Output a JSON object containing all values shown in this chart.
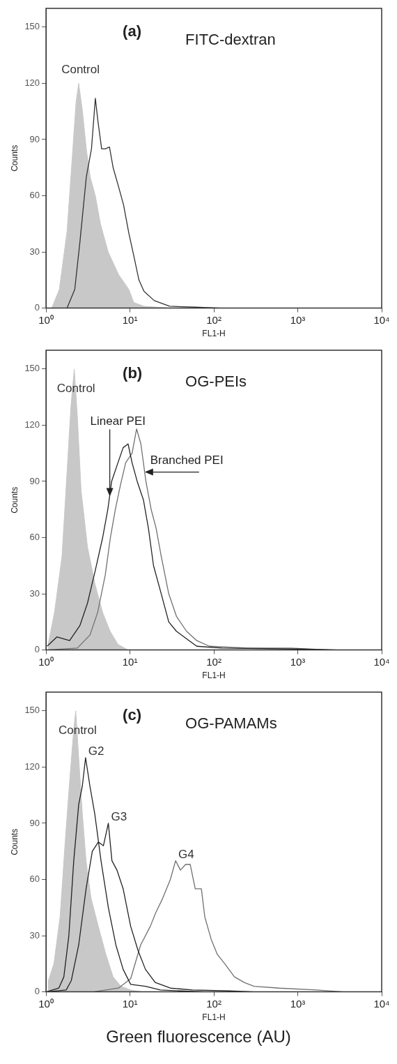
{
  "chart_data": [
    {
      "type": "line",
      "title": "(a)",
      "subtitle": "FITC-dextran",
      "xlabel": "FL1-H",
      "ylabel": "Counts",
      "log": "x",
      "xlim": [
        1,
        10000
      ],
      "xticks": [
        {
          "value": 1,
          "label": "10⁰"
        },
        {
          "value": 10,
          "label": "10¹"
        },
        {
          "value": 100,
          "label": "10²"
        },
        {
          "value": 1000,
          "label": "10³"
        },
        {
          "value": 10000,
          "label": "10⁴"
        }
      ],
      "ylim": [
        0,
        160
      ],
      "yticks": [
        0,
        30,
        60,
        90,
        120,
        150
      ],
      "grid": false,
      "legend": false,
      "series": [
        {
          "name": "Control",
          "type": "area",
          "color": "#c8c8c8",
          "x": [
            1.17,
            1.44,
            1.78,
            2.05,
            2.28,
            2.45,
            2.72,
            3.02,
            3.36,
            3.87,
            4.45,
            5.5,
            7.3,
            9.7,
            11.1,
            14.7,
            29.7
          ],
          "values": [
            0,
            10,
            41,
            80,
            110,
            120,
            105,
            85,
            70,
            60,
            45,
            30,
            18,
            10,
            3,
            1,
            0
          ]
        },
        {
          "type": "line",
          "color": "#333333",
          "x": [
            1.78,
            2.2,
            2.53,
            3.02,
            3.48,
            3.87,
            4.15,
            4.6,
            5.1,
            5.7,
            6.3,
            7.3,
            8.4,
            9.7,
            11.1,
            12.8,
            14.7,
            19.5,
            29.7,
            60,
            121
          ],
          "values": [
            0,
            10,
            35,
            70,
            85,
            112,
            100,
            85,
            85,
            86,
            75,
            65,
            55,
            40,
            28,
            15,
            9,
            4,
            1,
            0.5,
            0
          ]
        }
      ]
    },
    {
      "type": "line",
      "title": "(b)",
      "subtitle": "OG-PEIs",
      "xlabel": "FL1-H",
      "ylabel": "Counts",
      "log": "x",
      "xlim": [
        1,
        10000
      ],
      "xticks": [
        {
          "value": 1,
          "label": "10⁰"
        },
        {
          "value": 10,
          "label": "10¹"
        },
        {
          "value": 100,
          "label": "10²"
        },
        {
          "value": 1000,
          "label": "10³"
        },
        {
          "value": 10000,
          "label": "10⁴"
        }
      ],
      "ylim": [
        0,
        160
      ],
      "yticks": [
        0,
        30,
        60,
        90,
        120,
        150
      ],
      "grid": false,
      "legend": false,
      "annotations": [
        {
          "text": "Linear PEI",
          "x": 5.75,
          "y": 82
        },
        {
          "text": "Branched PEI",
          "x": 15,
          "y": 95
        }
      ],
      "series": [
        {
          "name": "Control",
          "type": "area",
          "color": "#c8c8c8",
          "x": [
            1.06,
            1.26,
            1.55,
            1.78,
            1.98,
            2.17,
            2.36,
            2.62,
            3.12,
            3.84,
            4.73,
            5.8,
            7.2,
            9.5
          ],
          "values": [
            3,
            20,
            50,
            95,
            130,
            150,
            125,
            85,
            55,
            35,
            20,
            10,
            3,
            0
          ]
        },
        {
          "type": "line",
          "color": "#222222",
          "x": [
            1.03,
            1.35,
            1.91,
            2.53,
            3.12,
            3.84,
            4.73,
            5.45,
            6.05,
            7.2,
            8.3,
            9.5,
            10.6,
            12.2,
            14.5,
            16.6,
            19.1,
            23.6,
            29,
            35.8,
            47.2,
            62.6,
            125,
            1012,
            3000
          ],
          "values": [
            2,
            7,
            5,
            13,
            25,
            42,
            60,
            75,
            90,
            100,
            108,
            110,
            100,
            90,
            80,
            65,
            45,
            30,
            15,
            10,
            6,
            2,
            1,
            0.5,
            0
          ]
        },
        {
          "type": "line",
          "color": "#707070",
          "x": [
            1.03,
            2.36,
            3.34,
            4.12,
            5.08,
            5.85,
            6.7,
            7.7,
            8.9,
            10.6,
            12,
            13.5,
            15.5,
            17.9,
            20.5,
            23.6,
            29,
            35.8,
            47.2,
            62.6,
            88.6,
            251,
            822,
            2500
          ],
          "values": [
            0,
            1,
            8,
            20,
            40,
            60,
            75,
            88,
            100,
            105,
            118,
            110,
            90,
            75,
            65,
            50,
            30,
            18,
            10,
            5,
            2,
            1,
            1,
            0
          ]
        }
      ]
    },
    {
      "type": "line",
      "title": "(c)",
      "subtitle": "OG-PAMAMs",
      "xlabel": "FL1-H",
      "ylabel": "Counts",
      "log": "x",
      "xlim": [
        1,
        10000
      ],
      "xticks": [
        {
          "value": 1,
          "label": "10⁰"
        },
        {
          "value": 10,
          "label": "10¹"
        },
        {
          "value": 100,
          "label": "10²"
        },
        {
          "value": 1000,
          "label": "10³"
        },
        {
          "value": 10000,
          "label": "10⁴"
        }
      ],
      "ylim": [
        0,
        160
      ],
      "yticks": [
        0,
        30,
        60,
        90,
        120,
        150
      ],
      "grid": false,
      "legend": false,
      "annotations": [
        "Green fluorescence (AU)"
      ],
      "series": [
        {
          "name": "Control",
          "type": "area",
          "color": "#c8c8c8",
          "x": [
            1.05,
            1.24,
            1.47,
            1.69,
            1.93,
            2.14,
            2.26,
            2.45,
            2.71,
            3.0,
            3.44,
            4.2,
            5.17,
            6.3,
            7.8,
            10.2,
            14
          ],
          "values": [
            5,
            15,
            40,
            80,
            115,
            140,
            150,
            125,
            95,
            70,
            50,
            35,
            20,
            8,
            3,
            1,
            0
          ]
        },
        {
          "name": "G2",
          "type": "line",
          "color": "#222222",
          "x": [
            1.01,
            1.42,
            1.63,
            1.87,
            2.14,
            2.45,
            2.71,
            2.96,
            3.33,
            3.81,
            4.52,
            5.53,
            6.8,
            8.3,
            10.2,
            15.3,
            23,
            40,
            80
          ],
          "values": [
            0,
            2,
            8,
            30,
            70,
            100,
            110,
            125,
            110,
            95,
            70,
            45,
            25,
            12,
            4,
            3,
            1,
            0.5,
            0
          ]
        },
        {
          "name": "G3",
          "type": "line",
          "color": "#222222",
          "x": [
            1.01,
            1.74,
            2.0,
            2.45,
            3.0,
            3.56,
            4.2,
            4.83,
            5.53,
            6.1,
            7.0,
            8.3,
            10.2,
            12.5,
            15.3,
            20,
            30.3,
            55.6,
            153,
            300
          ],
          "values": [
            0,
            1,
            6,
            25,
            55,
            75,
            80,
            78,
            90,
            70,
            65,
            55,
            35,
            22,
            12,
            5,
            2,
            1,
            0.5,
            0
          ]
        },
        {
          "name": "G4",
          "type": "line",
          "color": "#707070",
          "x": [
            3.68,
            7.3,
            10.2,
            13.4,
            17.5,
            20.2,
            24.6,
            30.3,
            35,
            40,
            46,
            52.3,
            60,
            71,
            78,
            93,
            110,
            135,
            176,
            230,
            300,
            600,
            1660,
            3500
          ],
          "values": [
            0,
            2,
            7,
            25,
            35,
            42,
            50,
            60,
            70,
            65,
            68,
            68,
            55,
            55,
            40,
            28,
            20,
            15,
            8,
            5,
            3,
            2,
            1,
            0
          ]
        }
      ]
    }
  ]
}
